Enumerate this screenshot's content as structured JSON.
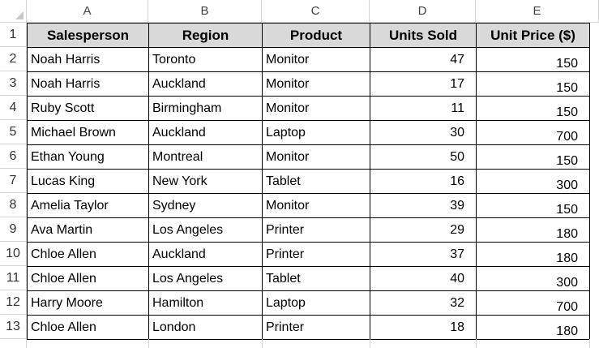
{
  "columns": [
    "A",
    "B",
    "C",
    "D",
    "E"
  ],
  "row_numbers": [
    "1",
    "2",
    "3",
    "4",
    "5",
    "6",
    "7",
    "8",
    "9",
    "10",
    "11",
    "12",
    "13"
  ],
  "header": [
    "Salesperson",
    "Region",
    "Product",
    "Units Sold",
    "Unit Price ($)"
  ],
  "rows": [
    [
      "Noah Harris",
      "Toronto",
      "Monitor",
      "47",
      "150"
    ],
    [
      "Noah Harris",
      "Auckland",
      "Monitor",
      "17",
      "150"
    ],
    [
      "Ruby Scott",
      "Birmingham",
      "Monitor",
      "11",
      "150"
    ],
    [
      "Michael Brown",
      "Auckland",
      "Laptop",
      "30",
      "700"
    ],
    [
      "Ethan Young",
      "Montreal",
      "Monitor",
      "50",
      "150"
    ],
    [
      "Lucas King",
      "New York",
      "Tablet",
      "16",
      "300"
    ],
    [
      "Amelia Taylor",
      "Sydney",
      "Monitor",
      "39",
      "150"
    ],
    [
      "Ava Martin",
      "Los Angeles",
      "Printer",
      "29",
      "180"
    ],
    [
      "Chloe Allen",
      "Auckland",
      "Printer",
      "37",
      "180"
    ],
    [
      "Chloe Allen",
      "Los Angeles",
      "Tablet",
      "40",
      "300"
    ],
    [
      "Harry Moore",
      "Hamilton",
      "Laptop",
      "32",
      "700"
    ],
    [
      "Chloe Allen",
      "London",
      "Printer",
      "18",
      "180"
    ]
  ]
}
